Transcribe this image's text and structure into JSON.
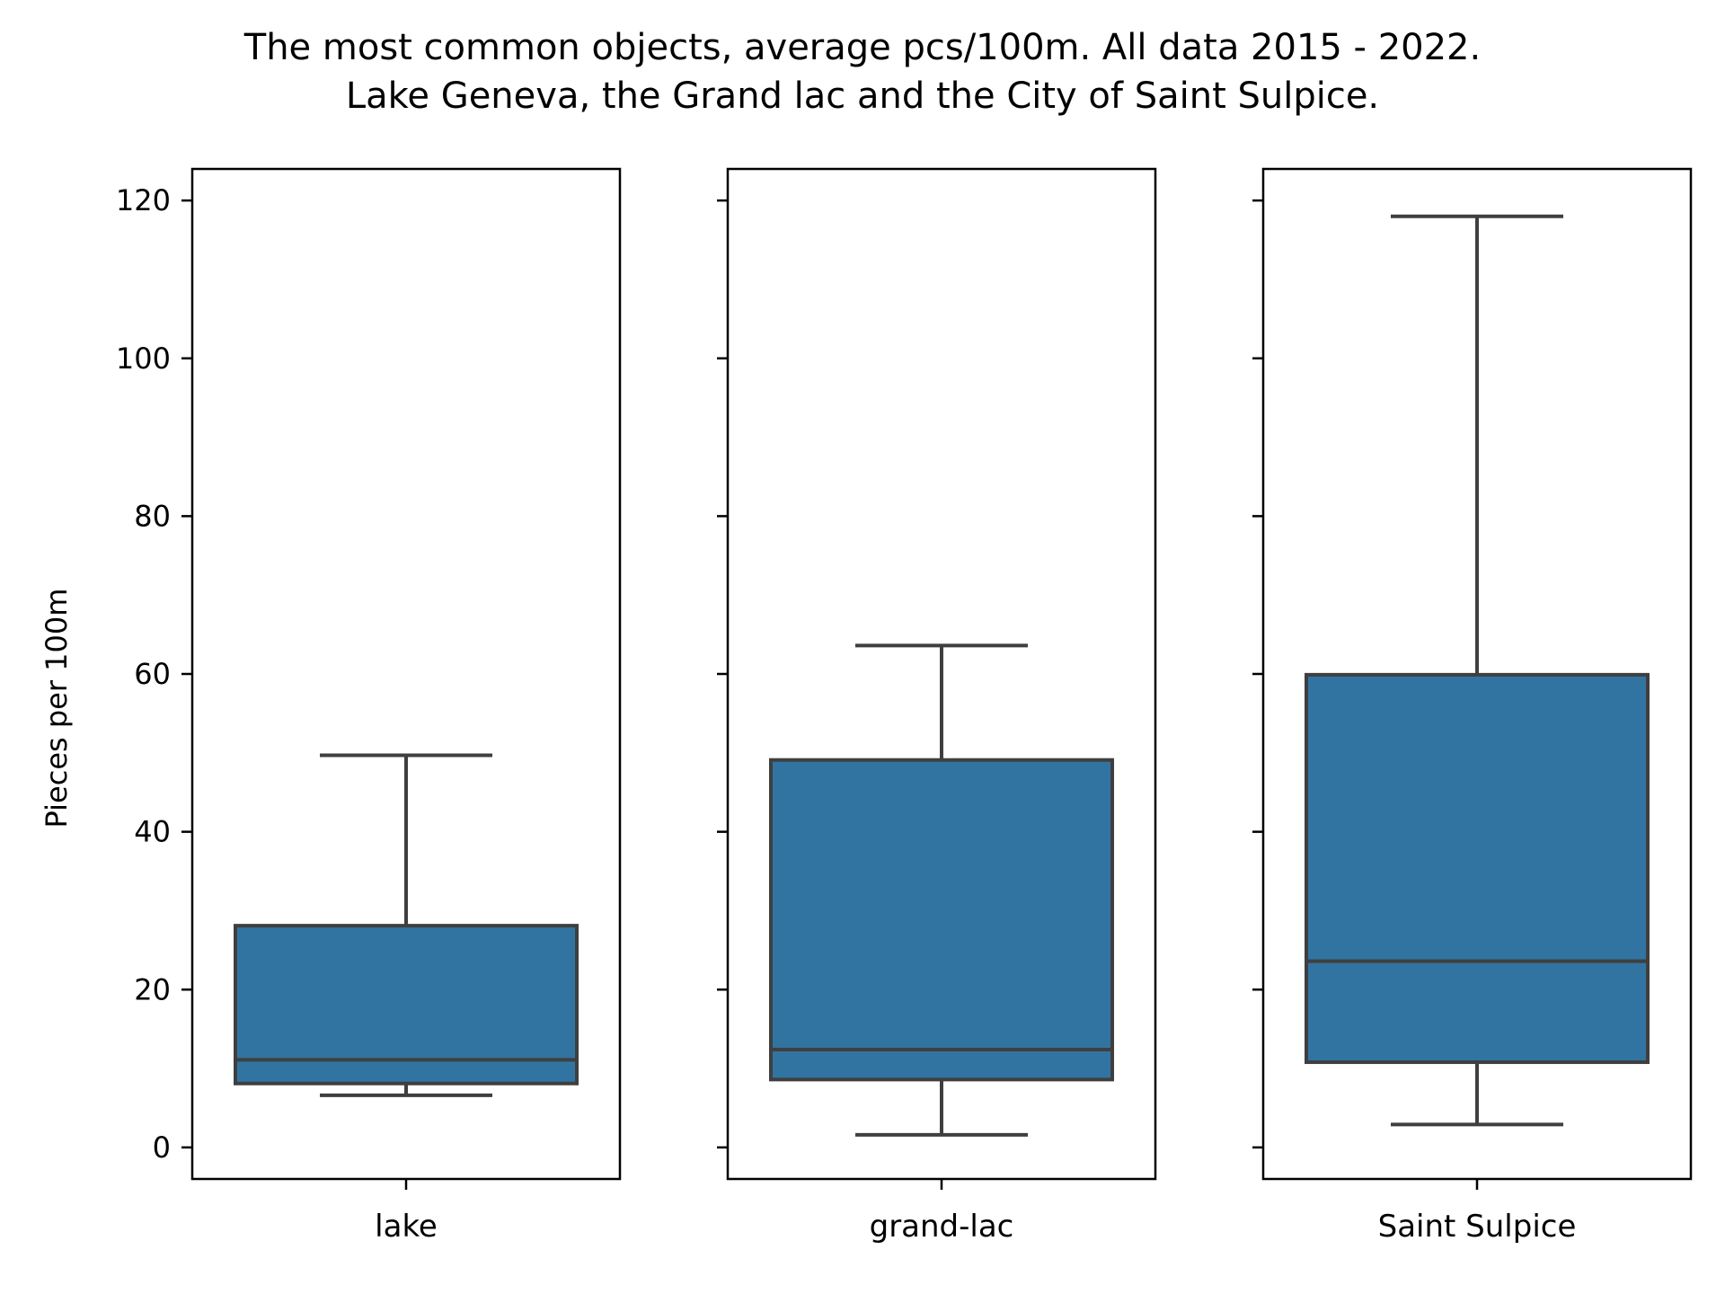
{
  "chart_data": {
    "type": "box",
    "title_lines": [
      "The most common objects, average pcs/100m. All data 2015 - 2022.",
      "Lake Geneva, the Grand lac and the City of Saint Sulpice."
    ],
    "ylabel": "Pieces per 100m",
    "ylim": [
      -4,
      124
    ],
    "yticks": [
      0,
      20,
      40,
      60,
      80,
      100,
      120
    ],
    "shared_y": true,
    "colors": {
      "box": "#3274a1",
      "line": "#3f3f3f",
      "axes": "#000000"
    },
    "panels": [
      {
        "label": "lake",
        "whisker_low": 6.6,
        "q1": 8.1,
        "median": 11.1,
        "q3": 28.1,
        "whisker_high": 49.7
      },
      {
        "label": "grand-lac",
        "whisker_low": 1.6,
        "q1": 8.6,
        "median": 12.4,
        "q3": 49.1,
        "whisker_high": 63.6
      },
      {
        "label": "Saint Sulpice",
        "whisker_low": 2.9,
        "q1": 10.8,
        "median": 23.6,
        "q3": 59.9,
        "whisker_high": 118.0
      }
    ]
  }
}
